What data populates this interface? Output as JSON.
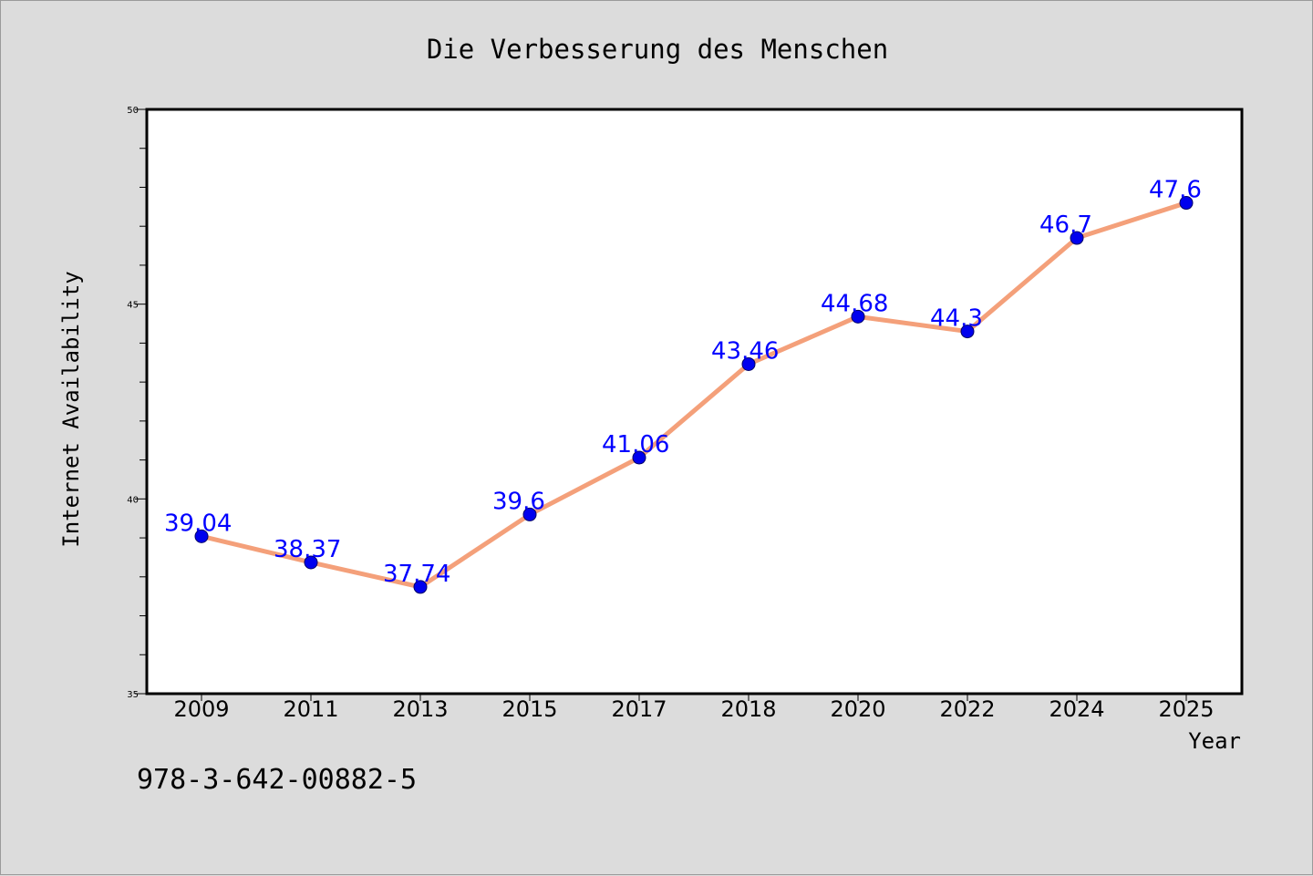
{
  "chart_data": {
    "type": "line",
    "title": "Die Verbesserung des Menschen",
    "xlabel": "Year",
    "ylabel": "Internet Availability",
    "categories": [
      "2009",
      "2011",
      "2013",
      "2015",
      "2017",
      "2018",
      "2020",
      "2022",
      "2024",
      "2025"
    ],
    "series": [
      {
        "values": [
          39.04,
          38.37,
          37.74,
          39.6,
          41.06,
          43.46,
          44.68,
          44.3,
          46.7,
          47.6
        ],
        "data_labels": [
          "39.04",
          "38.37",
          "37.74",
          "39.6",
          "41.06",
          "43.46",
          "44.68",
          "44.3",
          "46.7",
          "47.6"
        ],
        "line_color": "#f4a07a",
        "marker_color": "#0000ee"
      }
    ],
    "ylim": [
      35,
      50
    ],
    "y_major_ticks": [
      "35",
      "40",
      "45",
      "50"
    ],
    "grid": false,
    "legend": "none"
  },
  "annotation": "978-3-642-00882-5",
  "colors": {
    "background": "#dcdcdc",
    "plot_area": "#ffffff",
    "data_label": "#0000ff",
    "text": "#000000"
  }
}
